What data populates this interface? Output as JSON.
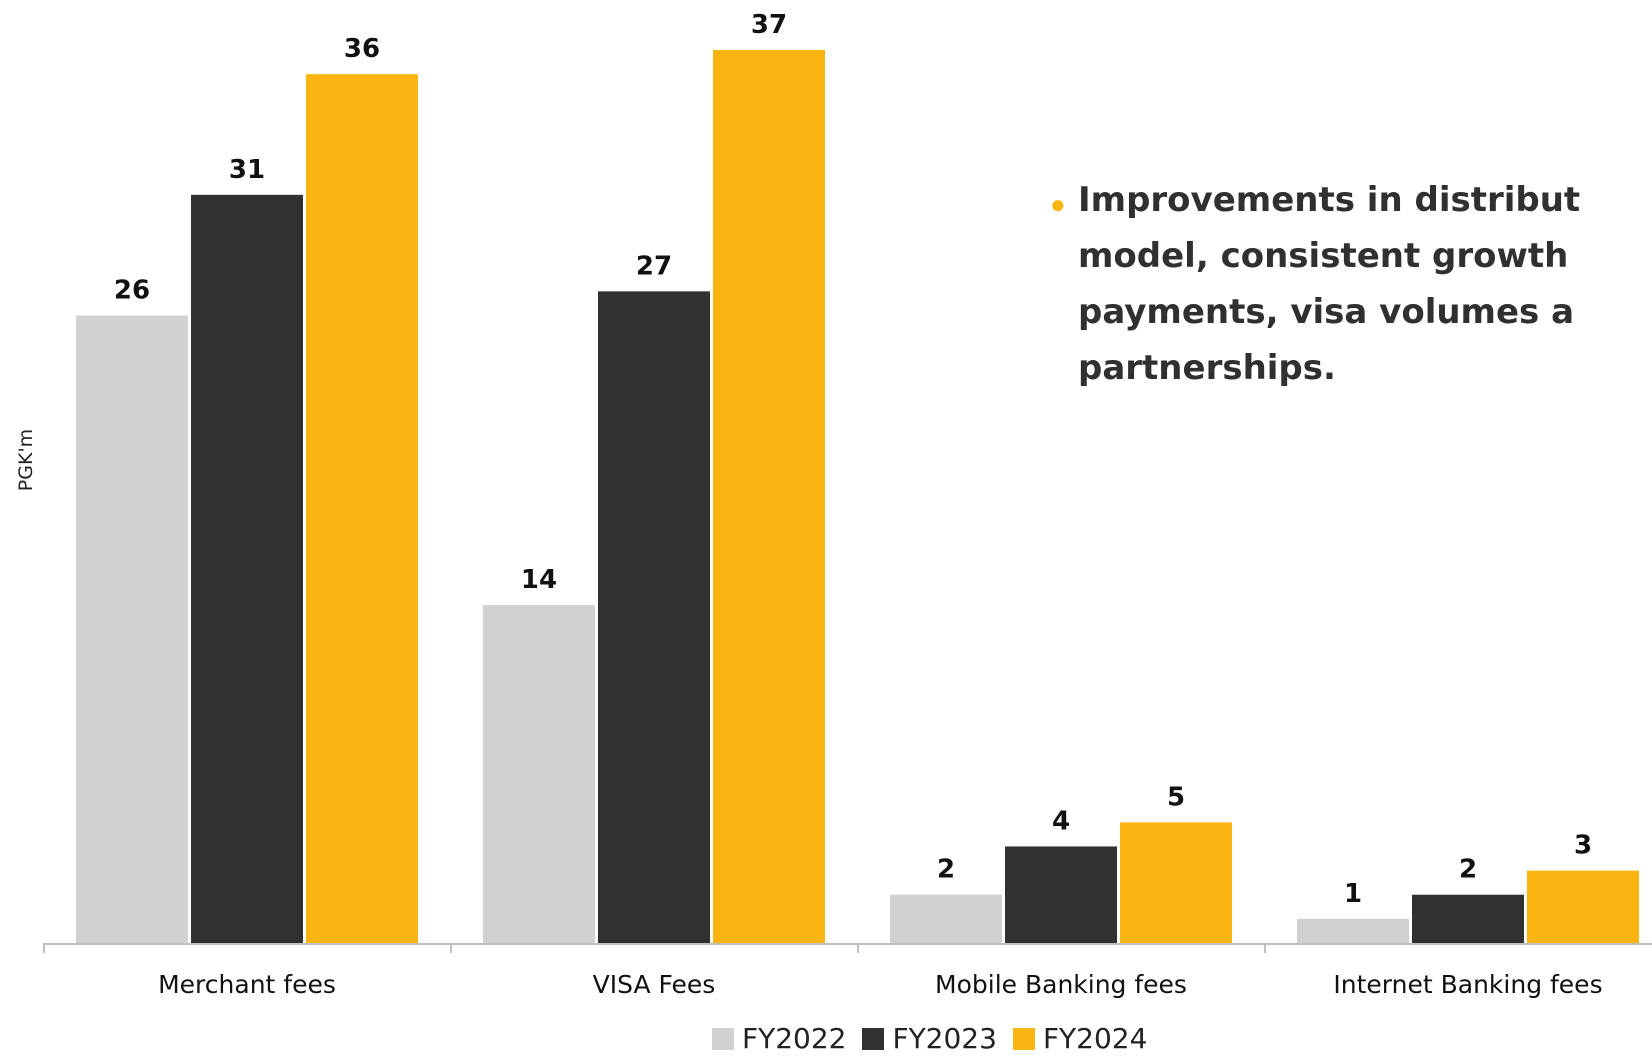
{
  "chart_data": {
    "type": "bar",
    "categories": [
      "Merchant fees",
      "VISA Fees",
      "Mobile Banking fees",
      "Internet Banking fees"
    ],
    "series": [
      {
        "name": "FY2022",
        "values": [
          26,
          14,
          2,
          1
        ]
      },
      {
        "name": "FY2023",
        "values": [
          31,
          27,
          4,
          2
        ]
      },
      {
        "name": "FY2024",
        "values": [
          36,
          37,
          5,
          3
        ]
      }
    ],
    "ylabel": "PGK'm",
    "xlabel": "",
    "ylim": [
      0,
      37
    ],
    "grid": false,
    "legend": "bottom-center",
    "colors": [
      "#d1d1d1",
      "#313131",
      "#fbb513"
    ]
  },
  "legend": {
    "items": [
      {
        "label": "FY2022",
        "color": "#d1d1d1"
      },
      {
        "label": "FY2023",
        "color": "#313131"
      },
      {
        "label": "FY2024",
        "color": "#fbb513"
      }
    ]
  },
  "note": {
    "bullet_color": "#fbb513",
    "lines": [
      "Improvements in distribut",
      "model, consistent growth",
      "payments, visa volumes a",
      "partnerships."
    ]
  }
}
